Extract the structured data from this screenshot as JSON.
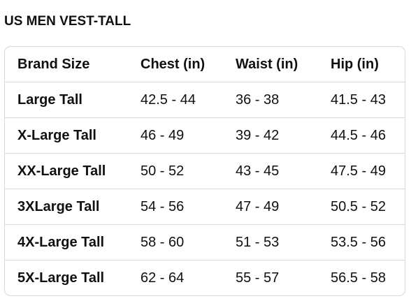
{
  "title": "US MEN VEST-TALL",
  "table": {
    "headers": [
      "Brand Size",
      "Chest (in)",
      "Waist (in)",
      "Hip (in)"
    ],
    "rows": [
      [
        "Large Tall",
        "42.5 - 44",
        "36 - 38",
        "41.5 - 43"
      ],
      [
        "X-Large Tall",
        "46 - 49",
        "39 - 42",
        "44.5 - 46"
      ],
      [
        "XX-Large Tall",
        "50 - 52",
        "43 - 45",
        "47.5 - 49"
      ],
      [
        "3XLarge Tall",
        "54 - 56",
        "47 - 49",
        "50.5 - 52"
      ],
      [
        "4X-Large Tall",
        "58 - 60",
        "51 - 53",
        "53.5 - 56"
      ],
      [
        "5X-Large Tall",
        "62 - 64",
        "55 - 57",
        "56.5 - 58"
      ]
    ]
  },
  "colors": {
    "text": "#0f1111",
    "border": "#d5d9d9",
    "background": "#ffffff"
  }
}
